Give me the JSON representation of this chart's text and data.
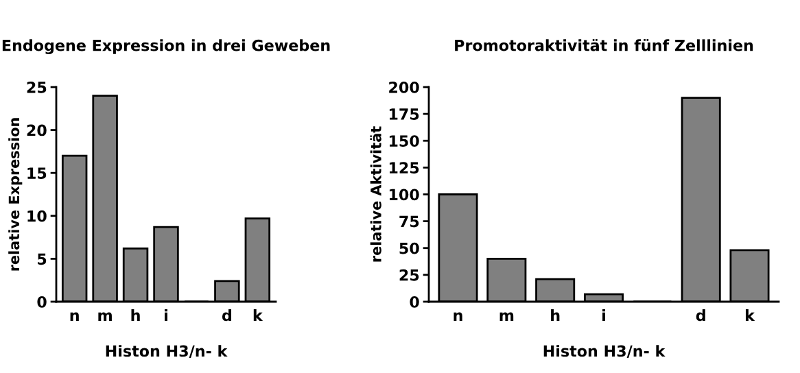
{
  "chart_data": [
    {
      "type": "bar",
      "title": "Endogene Expression in drei Geweben",
      "xlabel": "Histon H3/n- k",
      "ylabel": "relative Expression",
      "categories": [
        "n",
        "m",
        "h",
        "i",
        null,
        "d",
        "k"
      ],
      "values": [
        17,
        24,
        6.2,
        8.7,
        0,
        2.4,
        9.7
      ],
      "color": "#808080",
      "ylim": [
        0,
        25
      ],
      "yticks": [
        0,
        5,
        10,
        15,
        20,
        25
      ],
      "grid": false,
      "legend": false
    },
    {
      "type": "bar",
      "title": "Promotoraktivität in fünf Zelllinien",
      "xlabel": "Histon H3/n- k",
      "ylabel": "relative Aktivität",
      "categories": [
        "n",
        "m",
        "h",
        "i",
        null,
        "d",
        "k"
      ],
      "values": [
        100,
        40,
        21,
        7,
        0,
        190,
        48
      ],
      "color": "#808080",
      "ylim": [
        0,
        200
      ],
      "yticks": [
        0,
        25,
        50,
        75,
        100,
        125,
        150,
        175,
        200
      ],
      "grid": false,
      "legend": false
    }
  ]
}
